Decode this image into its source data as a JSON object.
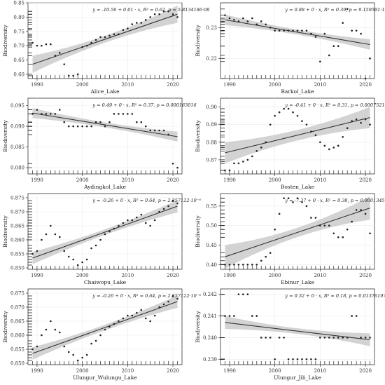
{
  "figure": {
    "panels": [
      "Alice_Lake",
      "Barkol_Lake",
      "Aydingkol_Lake",
      "Bosten_Lake",
      "Chaiwopu_Lake",
      "Ebinur_Lake",
      "Ulungur_Wulungu_Lake",
      "Ulungur_Jili_Lake"
    ]
  },
  "chart_data": [
    {
      "type": "scatter",
      "title": "Alice_Lake",
      "ylabel": "Biodiversity",
      "equation": "y = -10.56 + 0.01 · x,  R² = 0.62,  p = 5.8134186·08",
      "xlim": [
        1988,
        2022
      ],
      "ylim": [
        0.585,
        0.85
      ],
      "xticks": [
        1990,
        2000,
        2010,
        2020
      ],
      "yticks": [
        0.6,
        0.65,
        0.7,
        0.75,
        0.8,
        0.85
      ],
      "ytick_labels": [
        "0.60",
        "0.65",
        "0.70",
        "0.75",
        "0.80",
        "0.85"
      ],
      "fit": {
        "y_start": 0.635,
        "y_end": 0.81,
        "band_start": 0.03,
        "band_mid": 0.012,
        "band_end": 0.03
      },
      "x": [
        1989,
        1990,
        1991,
        1992,
        1993,
        1994,
        1995,
        1996,
        1997,
        1998,
        1999,
        2000,
        2001,
        2002,
        2003,
        2004,
        2005,
        2006,
        2007,
        2008,
        2009,
        2010,
        2011,
        2012,
        2013,
        2014,
        2015,
        2016,
        2017,
        2018,
        2019,
        2020,
        2021
      ],
      "y": [
        0.71,
        0.7,
        0.7,
        0.705,
        0.705,
        0.665,
        0.675,
        0.635,
        0.595,
        0.595,
        0.6,
        0.695,
        0.7,
        0.71,
        0.72,
        0.73,
        0.73,
        0.735,
        0.74,
        0.74,
        0.755,
        0.76,
        0.775,
        0.78,
        0.78,
        0.79,
        0.8,
        0.81,
        0.81,
        0.82,
        0.82,
        0.81,
        0.8
      ]
    },
    {
      "type": "scatter",
      "title": "Barkol_Lake",
      "ylabel": "Biodiversity",
      "equation": "y = 0.88 + 0 · x,  R² = 0.39,  p = 9.159591·10⁻⁵",
      "xlim": [
        1988,
        2022
      ],
      "ylim": [
        0.2135,
        0.238
      ],
      "xticks": [
        1990,
        2000,
        2010,
        2020
      ],
      "yticks": [
        0.22,
        0.23
      ],
      "ytick_labels": [
        "0.22",
        "0.23"
      ],
      "fit": {
        "y_start": 0.2325,
        "y_end": 0.2245,
        "band_start": 0.0017,
        "band_mid": 0.0008,
        "band_end": 0.0017
      },
      "x": [
        1989,
        1990,
        1991,
        1992,
        1993,
        1994,
        1995,
        1996,
        1997,
        1998,
        1999,
        2000,
        2001,
        2002,
        2003,
        2004,
        2005,
        2006,
        2007,
        2008,
        2009,
        2010,
        2011,
        2012,
        2013,
        2014,
        2015,
        2016,
        2017,
        2018,
        2019,
        2020,
        2021
      ],
      "y": [
        0.234,
        0.233,
        0.2325,
        0.232,
        0.233,
        0.232,
        0.233,
        0.231,
        0.232,
        0.231,
        0.23,
        0.229,
        0.229,
        0.229,
        0.229,
        0.229,
        0.229,
        0.229,
        0.229,
        0.228,
        0.227,
        0.219,
        0.228,
        0.221,
        0.224,
        0.224,
        0.2315,
        0.236,
        0.229,
        0.229,
        0.228,
        0.2135,
        0.22
      ]
    },
    {
      "type": "scatter",
      "title": "Aydingkol_Lake",
      "ylabel": "Biodiversity",
      "equation": "y = 0.49 + 0 · x,  R² = 0.37,  p = 0.000163016",
      "xlim": [
        1988,
        2022
      ],
      "ylim": [
        0.0785,
        0.0968
      ],
      "xticks": [
        1990,
        2000,
        2010,
        2020
      ],
      "yticks": [
        0.08,
        0.085,
        0.09,
        0.095
      ],
      "ytick_labels": [
        "0.080",
        "0.085",
        "0.090",
        "0.095"
      ],
      "fit": {
        "y_start": 0.0932,
        "y_end": 0.0875,
        "band_start": 0.0012,
        "band_mid": 0.0006,
        "band_end": 0.0012
      },
      "x": [
        1989,
        1990,
        1991,
        1992,
        1993,
        1994,
        1995,
        1996,
        1997,
        1998,
        1999,
        2000,
        2001,
        2002,
        2003,
        2004,
        2005,
        2006,
        2007,
        2008,
        2009,
        2010,
        2011,
        2012,
        2013,
        2014,
        2015,
        2016,
        2017,
        2018,
        2019,
        2020,
        2021
      ],
      "y": [
        0.093,
        0.094,
        0.093,
        0.093,
        0.093,
        0.093,
        0.094,
        0.091,
        0.09,
        0.09,
        0.09,
        0.09,
        0.09,
        0.09,
        0.091,
        0.091,
        0.09,
        0.091,
        0.093,
        0.093,
        0.093,
        0.093,
        0.093,
        0.091,
        0.091,
        0.09,
        0.089,
        0.089,
        0.089,
        0.089,
        0.088,
        0.081,
        0.08
      ]
    },
    {
      "type": "scatter",
      "title": "Bosten_Lake",
      "ylabel": "Biodiversity",
      "equation": "y = -0.41 + 0 · x,  R² = 0.31,  p = 0.0007521566",
      "xlim": [
        1988,
        2022
      ],
      "ylim": [
        0.862,
        0.905
      ],
      "xticks": [
        1990,
        2000,
        2010,
        2020
      ],
      "yticks": [
        0.87,
        0.88,
        0.89,
        0.9
      ],
      "ytick_labels": [
        "0.87",
        "0.88",
        "0.89",
        "0.90"
      ],
      "fit": {
        "y_start": 0.874,
        "y_end": 0.894,
        "band_start": 0.006,
        "band_mid": 0.003,
        "band_end": 0.006
      },
      "x": [
        1989,
        1990,
        1991,
        1992,
        1993,
        1994,
        1995,
        1996,
        1997,
        1998,
        1999,
        2000,
        2001,
        2002,
        2003,
        2004,
        2005,
        2006,
        2007,
        2008,
        2009,
        2010,
        2011,
        2012,
        2013,
        2014,
        2015,
        2016,
        2017,
        2018,
        2019,
        2020,
        2021
      ],
      "y": [
        0.864,
        0.864,
        0.868,
        0.868,
        0.869,
        0.87,
        0.872,
        0.875,
        0.877,
        0.88,
        0.89,
        0.895,
        0.897,
        0.899,
        0.899,
        0.897,
        0.895,
        0.892,
        0.89,
        0.886,
        0.884,
        0.88,
        0.878,
        0.876,
        0.877,
        0.878,
        0.883,
        0.888,
        0.892,
        0.893,
        0.891,
        0.893,
        0.89
      ]
    },
    {
      "type": "scatter",
      "title": "Chaiwopu_Lake",
      "ylabel": "Biodiversity",
      "equation": "y = -0.26 + 0 · x,  R² = 0.64,  p = 2.257122·10⁻⁸",
      "xlim": [
        1988,
        2022
      ],
      "ylim": [
        0.8495,
        0.8765
      ],
      "xticks": [
        1990,
        2000,
        2010,
        2020
      ],
      "yticks": [
        0.85,
        0.855,
        0.86,
        0.865,
        0.87,
        0.875
      ],
      "ytick_labels": [
        "0.850",
        "0.855",
        "0.860",
        "0.865",
        "0.870",
        "0.875"
      ],
      "fit": {
        "y_start": 0.8535,
        "y_end": 0.872,
        "band_start": 0.0022,
        "band_mid": 0.001,
        "band_end": 0.0022
      },
      "x": [
        1989,
        1990,
        1991,
        1992,
        1993,
        1994,
        1995,
        1996,
        1997,
        1998,
        1999,
        2000,
        2001,
        2002,
        2003,
        2004,
        2005,
        2006,
        2007,
        2008,
        2009,
        2010,
        2011,
        2012,
        2013,
        2014,
        2015,
        2016,
        2017,
        2018,
        2019,
        2020,
        2021
      ],
      "y": [
        0.855,
        0.856,
        0.86,
        0.862,
        0.865,
        0.862,
        0.861,
        0.856,
        0.854,
        0.853,
        0.851,
        0.852,
        0.853,
        0.857,
        0.858,
        0.86,
        0.862,
        0.863,
        0.864,
        0.865,
        0.866,
        0.867,
        0.867,
        0.868,
        0.869,
        0.866,
        0.865,
        0.867,
        0.87,
        0.871,
        0.872,
        0.874,
        0.873
      ]
    },
    {
      "type": "scatter",
      "title": "Ebinur_Lake",
      "ylabel": "Biodiversity",
      "equation": "y = -7.37 + 0 · x,  R² = 0.38,  p = 0.0001345167",
      "xlim": [
        1988,
        2022
      ],
      "ylim": [
        0.388,
        0.582
      ],
      "xticks": [
        1990,
        2000,
        2010,
        2020
      ],
      "yticks": [
        0.4,
        0.45,
        0.5,
        0.55
      ],
      "ytick_labels": [
        "0.40",
        "0.45",
        "0.50",
        "0.55"
      ],
      "fit": {
        "y_start": 0.42,
        "y_end": 0.545,
        "band_start": 0.03,
        "band_mid": 0.012,
        "band_end": 0.03
      },
      "x": [
        1989,
        1990,
        1991,
        1992,
        1993,
        1994,
        1995,
        1996,
        1997,
        1998,
        1999,
        2000,
        2001,
        2002,
        2003,
        2004,
        2005,
        2006,
        2007,
        2008,
        2009,
        2010,
        2011,
        2012,
        2013,
        2014,
        2015,
        2016,
        2017,
        2018,
        2019,
        2020,
        2021
      ],
      "y": [
        0.4,
        0.4,
        0.4,
        0.4,
        0.4,
        0.4,
        0.4,
        0.4,
        0.41,
        0.42,
        0.43,
        0.49,
        0.53,
        0.57,
        0.57,
        0.56,
        0.57,
        0.56,
        0.55,
        0.52,
        0.52,
        0.5,
        0.5,
        0.5,
        0.48,
        0.47,
        0.47,
        0.49,
        0.51,
        0.54,
        0.54,
        0.53,
        0.48
      ]
    },
    {
      "type": "scatter",
      "title": "Ulungur_Wulungu_Lake",
      "ylabel": "Biodiversity",
      "equation": "y = -0.26 + 0 · x,  R² = 0.64,  p = 2.257122·10⁻⁸",
      "xlim": [
        1988,
        2022
      ],
      "ylim": [
        0.8495,
        0.8765
      ],
      "xticks": [
        1990,
        2000,
        2010,
        2020
      ],
      "yticks": [
        0.85,
        0.855,
        0.86,
        0.865,
        0.87,
        0.875
      ],
      "ytick_labels": [
        "0.850",
        "0.855",
        "0.860",
        "0.865",
        "0.870",
        "0.875"
      ],
      "fit": {
        "y_start": 0.8535,
        "y_end": 0.872,
        "band_start": 0.0022,
        "band_mid": 0.001,
        "band_end": 0.0022
      },
      "x": [
        1989,
        1990,
        1991,
        1992,
        1993,
        1994,
        1995,
        1996,
        1997,
        1998,
        1999,
        2000,
        2001,
        2002,
        2003,
        2004,
        2005,
        2006,
        2007,
        2008,
        2009,
        2010,
        2011,
        2012,
        2013,
        2014,
        2015,
        2016,
        2017,
        2018,
        2019,
        2020,
        2021
      ],
      "y": [
        0.855,
        0.856,
        0.86,
        0.862,
        0.865,
        0.862,
        0.861,
        0.856,
        0.854,
        0.853,
        0.851,
        0.852,
        0.853,
        0.857,
        0.858,
        0.86,
        0.862,
        0.863,
        0.864,
        0.865,
        0.866,
        0.867,
        0.867,
        0.868,
        0.869,
        0.866,
        0.865,
        0.867,
        0.87,
        0.871,
        0.872,
        0.874,
        0.873
      ]
    },
    {
      "type": "scatter",
      "title": "Ulungur_Jili_Lake",
      "ylabel": "Biodiversity",
      "equation": "y = 0.32 + 0 · x,  R² = 0.18,  p = 0.01376197",
      "xlim": [
        1988,
        2022
      ],
      "ylim": [
        0.23875,
        0.24225
      ],
      "xticks": [
        1990,
        2000,
        2010,
        2020
      ],
      "yticks": [
        0.239,
        0.24,
        0.241,
        0.242
      ],
      "ytick_labels": [
        "0.239",
        "0.240",
        "0.241",
        "0.242"
      ],
      "fit": {
        "y_start": 0.2407,
        "y_end": 0.2399,
        "band_start": 0.0003,
        "band_mid": 0.00013,
        "band_end": 0.0003
      },
      "x": [
        1989,
        1990,
        1991,
        1992,
        1993,
        1994,
        1995,
        1996,
        1997,
        1998,
        1999,
        2000,
        2001,
        2002,
        2003,
        2004,
        2005,
        2006,
        2007,
        2008,
        2009,
        2010,
        2011,
        2012,
        2013,
        2014,
        2015,
        2016,
        2017,
        2018,
        2019,
        2020,
        2021
      ],
      "y": [
        0.241,
        0.241,
        0.241,
        0.242,
        0.242,
        0.242,
        0.241,
        0.241,
        0.24,
        0.24,
        0.24,
        0.239,
        0.24,
        0.24,
        0.239,
        0.239,
        0.239,
        0.239,
        0.239,
        0.239,
        0.239,
        0.24,
        0.24,
        0.24,
        0.24,
        0.24,
        0.24,
        0.24,
        0.241,
        0.241,
        0.24,
        0.24,
        0.24
      ]
    }
  ]
}
